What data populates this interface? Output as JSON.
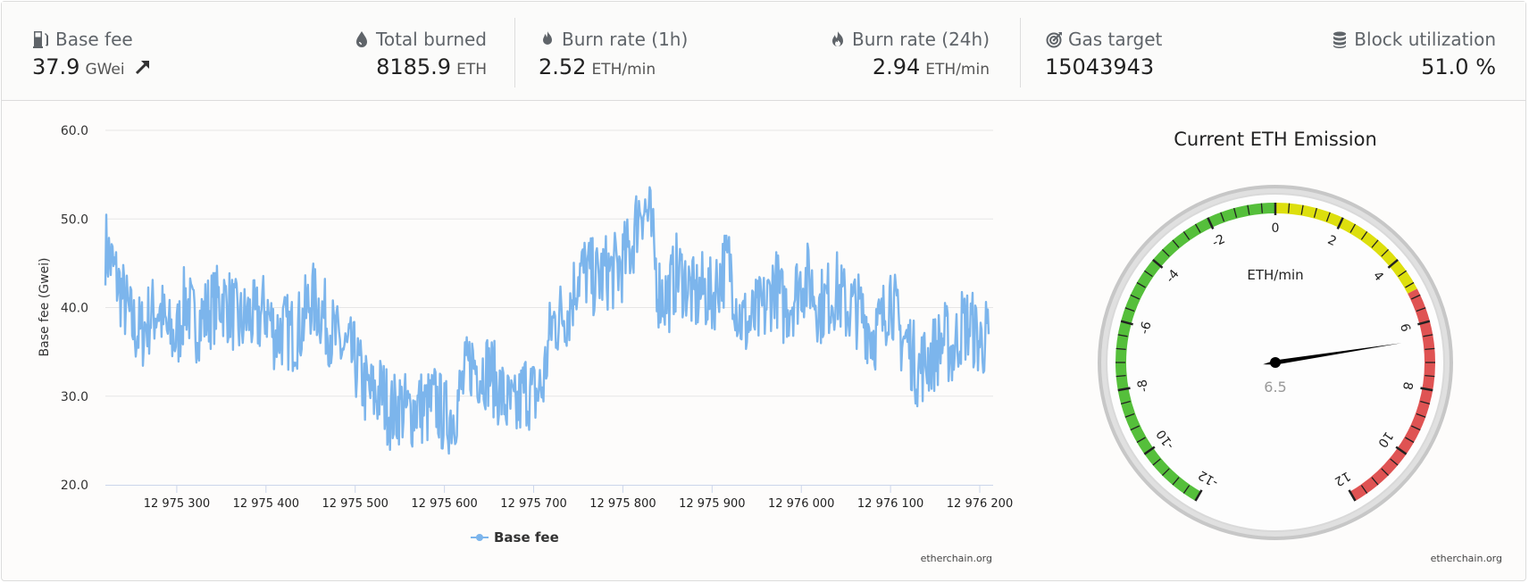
{
  "stats": {
    "base_fee": {
      "label": "Base fee",
      "value": "37.9",
      "unit": "GWei",
      "icon": "gas-pump-icon",
      "trend_icon": "arrow-up-right-icon"
    },
    "total_burned": {
      "label": "Total burned",
      "value": "8185.9",
      "unit": "ETH",
      "icon": "drop-icon"
    },
    "burn_rate_1h": {
      "label": "Burn rate (1h)",
      "value": "2.52",
      "unit": "ETH/min",
      "icon": "flame-icon"
    },
    "burn_rate_24h": {
      "label": "Burn rate (24h)",
      "value": "2.94",
      "unit": "ETH/min",
      "icon": "fire-icon"
    },
    "gas_target": {
      "label": "Gas target",
      "value": "15043943",
      "icon": "target-icon"
    },
    "block_utilization": {
      "label": "Block utilization",
      "value": "51.0 %",
      "icon": "database-icon"
    }
  },
  "credit": "etherchain.org",
  "chart_data": [
    {
      "type": "line",
      "ylabel": "Base fee (Gwei)",
      "ylim": [
        20,
        60
      ],
      "yticks": [
        "20.0",
        "30.0",
        "40.0",
        "50.0",
        "60.0"
      ],
      "xlim": [
        12975220,
        12976215
      ],
      "xticks": [
        12975300,
        12975400,
        12975500,
        12975600,
        12975700,
        12975800,
        12975900,
        12976000,
        12976100,
        12976200
      ],
      "xtick_labels": [
        "12 975 300",
        "12 975 400",
        "12 975 500",
        "12 975 600",
        "12 975 700",
        "12 975 800",
        "12 975 900",
        "12 976 000",
        "12 976 100",
        "12 976 200"
      ],
      "legend": "bottom-center",
      "grid": true,
      "color": "#7cb5ec",
      "series": [
        {
          "name": "Base fee",
          "x": [
            12975220,
            12975230,
            12975240,
            12975250,
            12975260,
            12975270,
            12975280,
            12975290,
            12975300,
            12975310,
            12975320,
            12975330,
            12975340,
            12975350,
            12975360,
            12975370,
            12975380,
            12975390,
            12975400,
            12975410,
            12975420,
            12975430,
            12975440,
            12975450,
            12975460,
            12975470,
            12975480,
            12975490,
            12975500,
            12975510,
            12975520,
            12975530,
            12975540,
            12975550,
            12975560,
            12975570,
            12975580,
            12975590,
            12975600,
            12975610,
            12975620,
            12975630,
            12975640,
            12975650,
            12975660,
            12975670,
            12975680,
            12975690,
            12975700,
            12975710,
            12975720,
            12975730,
            12975740,
            12975750,
            12975760,
            12975770,
            12975780,
            12975790,
            12975800,
            12975810,
            12975820,
            12975830,
            12975840,
            12975850,
            12975860,
            12975870,
            12975880,
            12975890,
            12975900,
            12975910,
            12975920,
            12975930,
            12975940,
            12975950,
            12975960,
            12975970,
            12975980,
            12975990,
            12976000,
            12976010,
            12976020,
            12976030,
            12976040,
            12976050,
            12976060,
            12976070,
            12976080,
            12976090,
            12976100,
            12976110,
            12976120,
            12976130,
            12976140,
            12976150,
            12976160,
            12976170,
            12976180,
            12976190,
            12976200,
            12976210
          ],
          "values": [
            47.0,
            44.0,
            41.0,
            38.0,
            37.0,
            39.0,
            40.0,
            37.0,
            36.5,
            41.0,
            38.0,
            39.0,
            40.0,
            41.0,
            40.0,
            38.0,
            39.0,
            38.5,
            40.0,
            37.0,
            37.5,
            37.0,
            38.0,
            41.0,
            40.0,
            38.0,
            36.0,
            35.0,
            34.0,
            31.0,
            30.0,
            30.5,
            28.0,
            29.0,
            28.0,
            29.0,
            28.5,
            29.5,
            27.5,
            28.0,
            31.0,
            34.0,
            33.0,
            33.0,
            31.0,
            29.0,
            28.0,
            31.0,
            30.0,
            31.0,
            38.0,
            39.0,
            40.0,
            44.0,
            44.0,
            43.0,
            44.0,
            44.0,
            45.0,
            47.0,
            52.0,
            50.0,
            42.0,
            41.0,
            44.0,
            43.0,
            41.0,
            42.0,
            41.0,
            44.0,
            45.0,
            39.0,
            38.0,
            39.0,
            40.0,
            43.0,
            40.0,
            41.0,
            43.0,
            43.0,
            40.0,
            41.0,
            42.0,
            40.0,
            40.0,
            39.0,
            37.0,
            38.0,
            42.0,
            37.0,
            36.0,
            33.0,
            34.0,
            35.0,
            36.5,
            35.0,
            38.0,
            38.0,
            36.0,
            37.0
          ]
        }
      ]
    },
    {
      "type": "gauge",
      "title": "Current ETH Emission",
      "unit": "ETH/min",
      "min": -12,
      "max": 12,
      "value": 6.5,
      "value_label": "6.5",
      "tick_labels": [
        "-12",
        "-10",
        "-8",
        "-6",
        "-4",
        "-2",
        "0",
        "2",
        "4",
        "6",
        "8",
        "10",
        "12"
      ],
      "bands": [
        {
          "from": -12,
          "to": 0,
          "color": "#55bf3b"
        },
        {
          "from": 0,
          "to": 5,
          "color": "#dddf0d"
        },
        {
          "from": 5,
          "to": 12,
          "color": "#df5353"
        }
      ]
    }
  ]
}
